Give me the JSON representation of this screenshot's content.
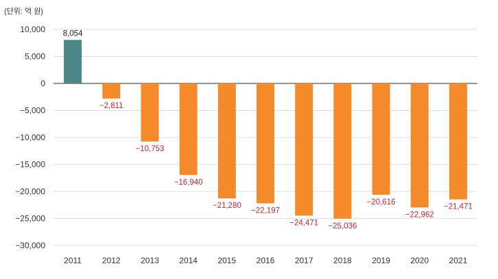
{
  "chart_data": {
    "type": "bar",
    "unit_label": "(단위: 억 원)",
    "categories": [
      "2011",
      "2012",
      "2013",
      "2014",
      "2015",
      "2016",
      "2017",
      "2018",
      "2019",
      "2020",
      "2021"
    ],
    "values": [
      8054,
      -2811,
      -10753,
      -16940,
      -21280,
      -22197,
      -24471,
      -25036,
      -20616,
      -22962,
      -21471
    ],
    "value_labels": [
      "8,054",
      "−2,811",
      "−10,753",
      "−16,940",
      "−21,280",
      "−22,197",
      "−24,471",
      "−25,036",
      "−20,616",
      "−22,962",
      "−21,471"
    ],
    "ylim": [
      -30000,
      10000
    ],
    "yticks": [
      10000,
      5000,
      0,
      -5000,
      -10000,
      -15000,
      -20000,
      -25000,
      -30000
    ],
    "ytick_labels": [
      "10,000",
      "5,000",
      "0",
      "−5,000",
      "−10,000",
      "−15,000",
      "−20,000",
      "−25,000",
      "−30,000"
    ],
    "grid": true,
    "colors": {
      "positive_bar": "#4a8786",
      "negative_bar": "#f58a2a",
      "positive_label": "#222222",
      "negative_label": "#c8242f",
      "grid": "#dddddd",
      "zero_line": "#555555"
    }
  }
}
